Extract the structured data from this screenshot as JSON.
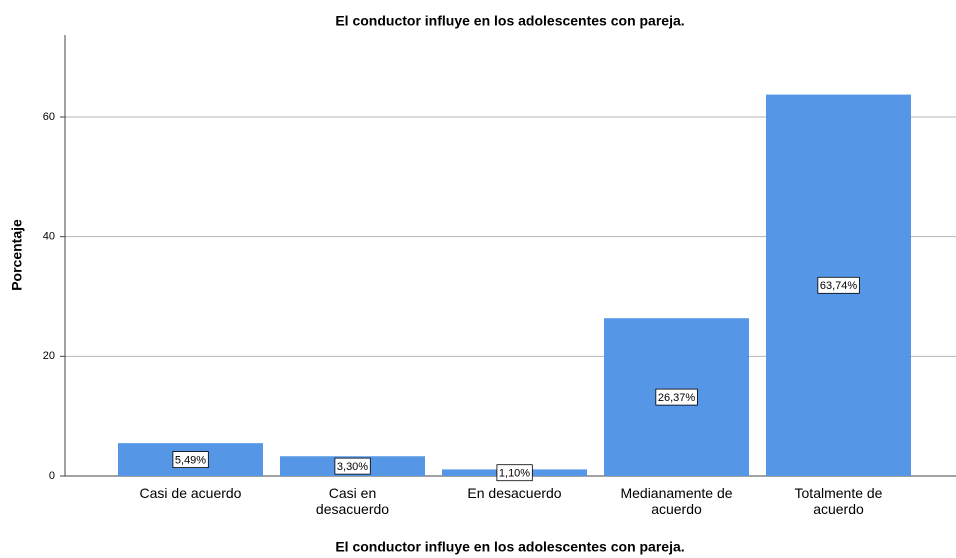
{
  "chart_data": {
    "type": "bar",
    "title": "El conductor influye en los adolescentes con pareja.",
    "x_label": "El conductor influye en los adolescentes con pareja.",
    "y_label": "Porcentaje",
    "categories": [
      "Casi de acuerdo",
      "Casi en desacuerdo",
      "En desacuerdo",
      "Medianamente de acuerdo",
      "Totalmente de acuerdo"
    ],
    "values": [
      5.49,
      3.3,
      1.1,
      26.37,
      63.74
    ],
    "value_labels": [
      "5,49%",
      "3,30%",
      "1,10%",
      "26,37%",
      "63,74%"
    ],
    "color": "#5596e6",
    "ylim": [
      0,
      73.7
    ],
    "yticks": [
      0,
      20,
      40,
      60
    ],
    "grid": true
  }
}
